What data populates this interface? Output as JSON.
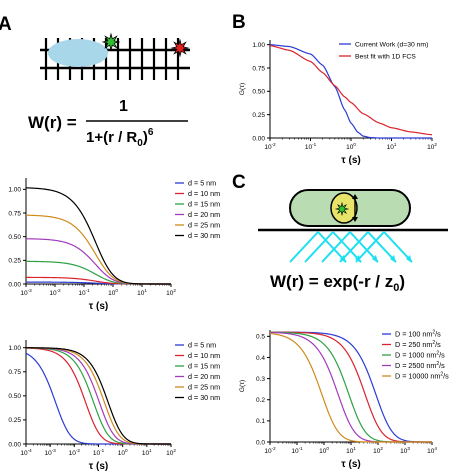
{
  "panel_labels": {
    "a": "A",
    "b": "B",
    "c": "C"
  },
  "formulas": {
    "w_dna_lhs": "W(r) =",
    "w_dna_num": "1",
    "w_dna_den": "1+(r / R",
    "w_dna_den_sub": "0",
    "w_dna_den_end": ")",
    "w_dna_den_sup": "6",
    "w_tirf": "W(r) = exp(-r / z",
    "w_tirf_sub": "0",
    "w_tirf_end": ")"
  },
  "colors": {
    "blob": "#a9d7ea",
    "green_star": "#2fbf2f",
    "red_star": "#e02020",
    "cyan_beam": "#1ee0f0",
    "cell_fill": "#b9dcb2",
    "particle_fill": "#e8e46a"
  },
  "chart_data": [
    {
      "id": "B",
      "type": "line",
      "xscale": "log",
      "xlim": [
        0.01,
        100
      ],
      "ylim": [
        0,
        1.05
      ],
      "xticks": [
        0.01,
        0.1,
        1,
        10,
        100
      ],
      "xtick_labels": [
        "10",
        "10",
        "10",
        "10",
        "10"
      ],
      "xtick_sups": [
        "-2",
        "-1",
        "0",
        "1",
        "2"
      ],
      "yticks": [
        0,
        0.25,
        0.5,
        0.75,
        1.0
      ],
      "ytick_labels": [
        "0.00",
        "0.25",
        "0.50",
        "0.75",
        "1.00"
      ],
      "xlabel": "τ (s)",
      "ylabel": "G(τ)",
      "legend_position": "top-right",
      "series": [
        {
          "name": "Current Work (d=30 nm)",
          "color": "#2b3bd6",
          "x": [
            0.01,
            0.03,
            0.1,
            0.2,
            0.4,
            0.7,
            1,
            1.5,
            2,
            3,
            5,
            10,
            100
          ],
          "y": [
            1.0,
            0.98,
            0.9,
            0.78,
            0.55,
            0.3,
            0.16,
            0.06,
            0.02,
            0.005,
            0.0,
            0.0,
            0.0
          ]
        },
        {
          "name": "Best fit with 1D FCS",
          "color": "#d9232d",
          "x": [
            0.01,
            0.03,
            0.1,
            0.2,
            0.4,
            0.7,
            1,
            2,
            5,
            10,
            30,
            100
          ],
          "y": [
            0.99,
            0.94,
            0.82,
            0.7,
            0.56,
            0.44,
            0.38,
            0.26,
            0.16,
            0.11,
            0.065,
            0.035
          ]
        }
      ]
    },
    {
      "id": "A-middle",
      "type": "line",
      "xscale": "log",
      "xlim": [
        0.001,
        100
      ],
      "ylim": [
        0,
        1.12
      ],
      "xticks": [
        0.001,
        0.01,
        0.1,
        1,
        10,
        100
      ],
      "xtick_labels": [
        "10",
        "10",
        "10",
        "10",
        "10",
        "10"
      ],
      "xtick_sups": [
        "-3",
        "-2",
        "-1",
        "0",
        "1",
        "2"
      ],
      "yticks": [
        0,
        0.25,
        0.5,
        0.75,
        1.0
      ],
      "ytick_labels": [
        "0.00",
        "0.25",
        "0.50",
        "0.75",
        "1.00"
      ],
      "xlabel": "τ (s)",
      "ylabel": "",
      "legend_position": "top-right",
      "series": [
        {
          "name": "d = 5 nm",
          "color": "#2b3bd6",
          "plateau": 0.02,
          "tau": 0.6
        },
        {
          "name": "d = 10 nm",
          "color": "#d9232d",
          "plateau": 0.07,
          "tau": 0.6
        },
        {
          "name": "d = 15 nm",
          "color": "#2ea043",
          "plateau": 0.24,
          "tau": 0.6
        },
        {
          "name": "d = 20 nm",
          "color": "#a23bbd",
          "plateau": 0.48,
          "tau": 0.6
        },
        {
          "name": "d = 25 nm",
          "color": "#d08a1c",
          "plateau": 0.73,
          "tau": 0.6
        },
        {
          "name": "d = 30 nm",
          "color": "#000000",
          "plateau": 1.02,
          "tau": 0.6
        }
      ]
    },
    {
      "id": "A-bottom",
      "type": "line",
      "xscale": "log",
      "xlim": [
        0.0001,
        100
      ],
      "ylim": [
        0,
        1.08
      ],
      "xticks": [
        0.0001,
        0.001,
        0.01,
        0.1,
        1,
        10,
        100
      ],
      "xtick_labels": [
        "10",
        "10",
        "10",
        "10",
        "10",
        "10",
        "10"
      ],
      "xtick_sups": [
        "-4",
        "-3",
        "-2",
        "-1",
        "0",
        "1",
        "2"
      ],
      "yticks": [
        0,
        0.25,
        0.5,
        0.75,
        1.0
      ],
      "ytick_labels": [
        "0.00",
        "0.25",
        "0.50",
        "0.75",
        "1.00"
      ],
      "xlabel": "τ (s)",
      "ylabel": "",
      "legend_position": "top-right",
      "series": [
        {
          "name": "d = 5 nm",
          "color": "#2b3bd6",
          "plateau": 1.0,
          "tau": 0.004
        },
        {
          "name": "d = 10 nm",
          "color": "#d9232d",
          "plateau": 1.0,
          "tau": 0.07
        },
        {
          "name": "d = 15 nm",
          "color": "#2ea043",
          "plateau": 1.0,
          "tau": 0.15
        },
        {
          "name": "d = 20 nm",
          "color": "#a23bbd",
          "plateau": 1.0,
          "tau": 0.26
        },
        {
          "name": "d = 25 nm",
          "color": "#d08a1c",
          "plateau": 1.0,
          "tau": 0.42
        },
        {
          "name": "d = 30 nm",
          "color": "#000000",
          "plateau": 1.0,
          "tau": 0.6
        }
      ]
    },
    {
      "id": "C-bottom",
      "type": "line",
      "xscale": "log",
      "xlim": [
        0.01,
        10000
      ],
      "ylim": [
        0,
        0.53
      ],
      "xticks": [
        0.01,
        0.1,
        1,
        10,
        100,
        1000,
        10000
      ],
      "xtick_labels": [
        "10",
        "10",
        "10",
        "10",
        "10",
        "10",
        "10"
      ],
      "xtick_sups": [
        "-2",
        "-1",
        "0",
        "1",
        "2",
        "3",
        "4"
      ],
      "yticks": [
        0,
        0.1,
        0.2,
        0.3,
        0.4,
        0.5
      ],
      "ytick_labels": [
        "0.0",
        "0.1",
        "0.2",
        "0.3",
        "0.4",
        "0.5"
      ],
      "xlabel": "τ (s)",
      "ylabel": "G(τ)",
      "legend_position": "top-right",
      "series": [
        {
          "name": "D = 100 nm",
          "unit_sup": "2",
          "unit_tail": "/s",
          "color": "#2b3bd6",
          "plateau": 0.52,
          "tau": 200
        },
        {
          "name": "D = 250 nm",
          "unit_sup": "2",
          "unit_tail": "/s",
          "color": "#d9232d",
          "plateau": 0.52,
          "tau": 80
        },
        {
          "name": "D = 1000 nm",
          "unit_sup": "2",
          "unit_tail": "/s",
          "color": "#2ea043",
          "plateau": 0.52,
          "tau": 20
        },
        {
          "name": "D = 2500 nm",
          "unit_sup": "2",
          "unit_tail": "/s",
          "color": "#a23bbd",
          "plateau": 0.52,
          "tau": 8
        },
        {
          "name": "D = 10000 nm",
          "unit_sup": "2",
          "unit_tail": "/s",
          "color": "#d08a1c",
          "plateau": 0.52,
          "tau": 2
        }
      ]
    }
  ]
}
